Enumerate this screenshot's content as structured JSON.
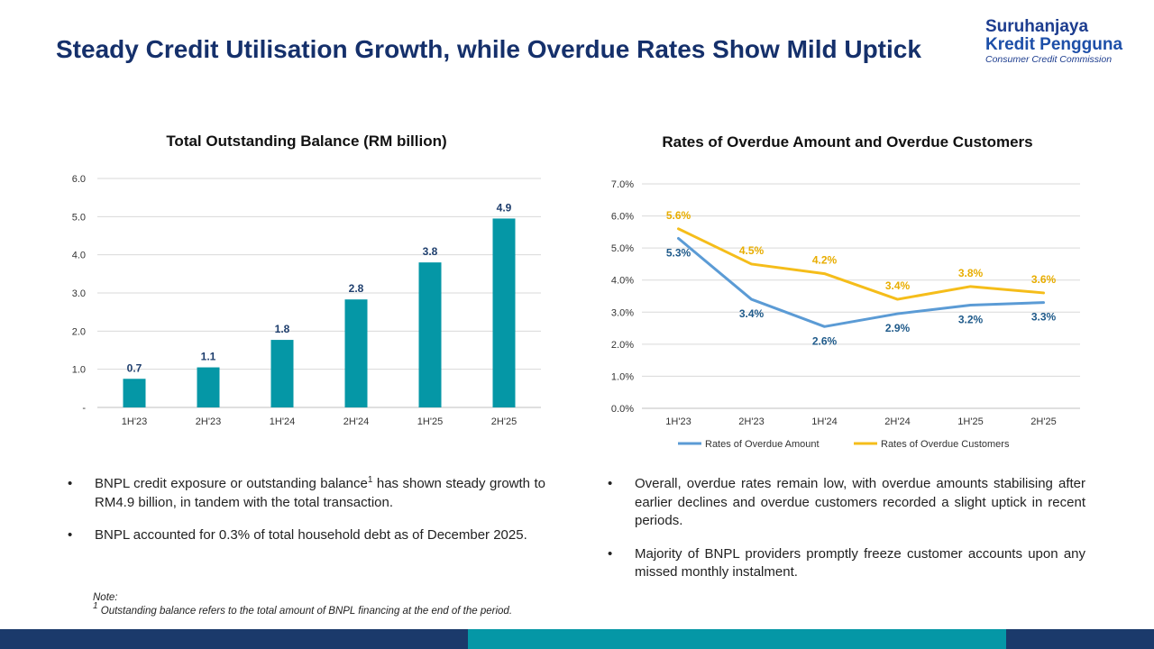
{
  "title": "Steady Credit Utilisation Growth, while Overdue Rates Show Mild Uptick",
  "logo": {
    "line1": "Suruhanjaya",
    "line2": "Kredit Pengguna",
    "line3": "Consumer Credit Commission"
  },
  "colors": {
    "title": "#15306b",
    "bar": "#0597a6",
    "overdue_amount": "#5b9bd5",
    "overdue_customers": "#f5bd1a",
    "footer_dark": "#1b3a6b",
    "footer_teal": "#0597a6"
  },
  "chart_data": [
    {
      "type": "bar",
      "title": "Total Outstanding Balance (RM billion)",
      "categories": [
        "1H'23",
        "2H'23",
        "1H'24",
        "2H'24",
        "1H'25",
        "2H'25"
      ],
      "values": [
        0.75,
        1.05,
        1.77,
        2.83,
        3.8,
        4.95
      ],
      "data_labels": [
        "0.7",
        "1.1",
        "1.8",
        "2.8",
        "3.8",
        "4.9"
      ],
      "yticks": [
        "-",
        "1.0",
        "2.0",
        "3.0",
        "4.0",
        "5.0",
        "6.0"
      ],
      "ylim": [
        0,
        6
      ],
      "grid": true
    },
    {
      "type": "line",
      "title": "Rates of Overdue Amount and Overdue Customers",
      "categories": [
        "1H'23",
        "2H'23",
        "1H'24",
        "2H'24",
        "1H'25",
        "2H'25"
      ],
      "series": [
        {
          "name": "Rates of Overdue Amount",
          "values": [
            5.3,
            3.4,
            2.55,
            2.95,
            3.22,
            3.3
          ],
          "labels": [
            "5.3%",
            "3.4%",
            "2.6%",
            "2.9%",
            "3.2%",
            "3.3%"
          ],
          "color": "#5b9bd5"
        },
        {
          "name": "Rates of Overdue Customers",
          "values": [
            5.6,
            4.5,
            4.2,
            3.4,
            3.8,
            3.6
          ],
          "labels": [
            "5.6%",
            "4.5%",
            "4.2%",
            "3.4%",
            "3.8%",
            "3.6%"
          ],
          "color": "#f5bd1a"
        }
      ],
      "yticks": [
        "0.0%",
        "1.0%",
        "2.0%",
        "3.0%",
        "4.0%",
        "5.0%",
        "6.0%",
        "7.0%"
      ],
      "ylim": [
        0,
        7
      ],
      "legend_position": "bottom",
      "grid": true
    }
  ],
  "left_bullets": {
    "b1_pre": "BNPL credit exposure or outstanding balance",
    "b1_sup": "1",
    "b1_post": " has shown steady growth to RM4.9 billion, in tandem with the total transaction.",
    "b2": "BNPL accounted for 0.3% of total household debt as of December 2025.",
    "marker": "•"
  },
  "right_bullets": {
    "b1": "Overall, overdue rates remain low, with overdue amounts stabilising after earlier declines and overdue customers recorded a slight uptick in recent periods.",
    "b2": "Majority of BNPL providers promptly freeze customer accounts upon any missed monthly instalment.",
    "marker": "•"
  },
  "note": {
    "heading": "Note:",
    "sup": "1",
    "text": "  Outstanding balance refers to the total amount of BNPL financing at the end of the period."
  }
}
